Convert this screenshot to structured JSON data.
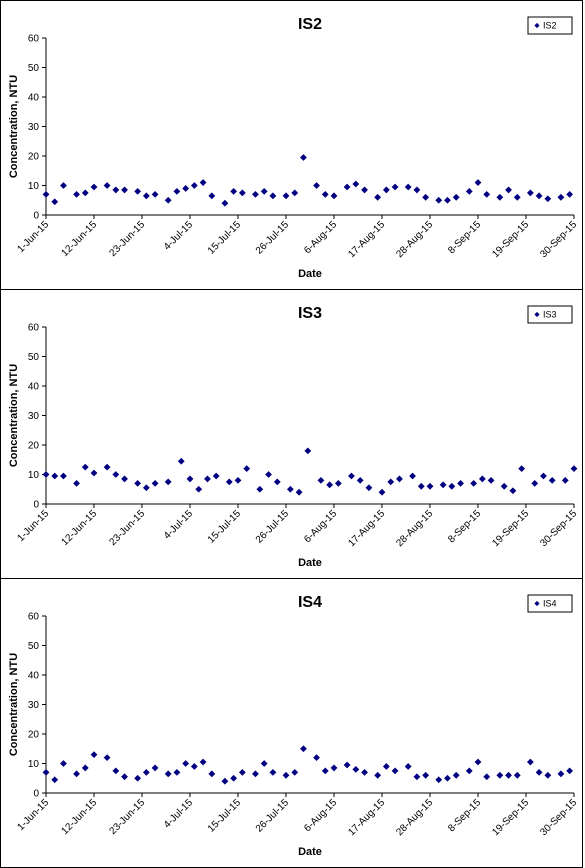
{
  "chart_data": [
    {
      "type": "scatter",
      "title": "IS2",
      "xlabel": "Date",
      "ylabel": "Concentration, NTU",
      "ylim": [
        0,
        60
      ],
      "yticks": [
        "0",
        "10",
        "20",
        "30",
        "40",
        "50",
        "60"
      ],
      "xlim": [
        "2015-06-01",
        "2015-09-30"
      ],
      "xticks": [
        "1-Jun-15",
        "12-Jun-15",
        "23-Jun-15",
        "4-Jul-15",
        "15-Jul-15",
        "26-Jul-15",
        "6-Aug-15",
        "17-Aug-15",
        "28-Aug-15",
        "8-Sep-15",
        "19-Sep-15",
        "30-Sep-15"
      ],
      "legend": "top-right",
      "grid": false,
      "marker_color": "#000080",
      "series": [
        {
          "name": "IS2",
          "points": [
            [
              "2015-06-01",
              7.0
            ],
            [
              "2015-06-03",
              4.5
            ],
            [
              "2015-06-05",
              10.0
            ],
            [
              "2015-06-08",
              7.0
            ],
            [
              "2015-06-10",
              7.5
            ],
            [
              "2015-06-12",
              9.5
            ],
            [
              "2015-06-15",
              10.0
            ],
            [
              "2015-06-17",
              8.5
            ],
            [
              "2015-06-19",
              8.5
            ],
            [
              "2015-06-22",
              8.0
            ],
            [
              "2015-06-24",
              6.5
            ],
            [
              "2015-06-26",
              7.0
            ],
            [
              "2015-06-29",
              5.0
            ],
            [
              "2015-07-01",
              8.0
            ],
            [
              "2015-07-03",
              9.0
            ],
            [
              "2015-07-05",
              10.0
            ],
            [
              "2015-07-07",
              11.0
            ],
            [
              "2015-07-09",
              6.5
            ],
            [
              "2015-07-12",
              4.0
            ],
            [
              "2015-07-14",
              8.0
            ],
            [
              "2015-07-16",
              7.5
            ],
            [
              "2015-07-19",
              7.0
            ],
            [
              "2015-07-21",
              8.0
            ],
            [
              "2015-07-23",
              6.5
            ],
            [
              "2015-07-26",
              6.5
            ],
            [
              "2015-07-28",
              7.5
            ],
            [
              "2015-07-30",
              19.5
            ],
            [
              "2015-08-02",
              10.0
            ],
            [
              "2015-08-04",
              7.0
            ],
            [
              "2015-08-06",
              6.5
            ],
            [
              "2015-08-09",
              9.5
            ],
            [
              "2015-08-11",
              10.5
            ],
            [
              "2015-08-13",
              8.5
            ],
            [
              "2015-08-16",
              6.0
            ],
            [
              "2015-08-18",
              8.5
            ],
            [
              "2015-08-20",
              9.5
            ],
            [
              "2015-08-23",
              9.5
            ],
            [
              "2015-08-25",
              8.5
            ],
            [
              "2015-08-27",
              6.0
            ],
            [
              "2015-08-30",
              5.0
            ],
            [
              "2015-09-01",
              5.0
            ],
            [
              "2015-09-03",
              6.0
            ],
            [
              "2015-09-06",
              8.0
            ],
            [
              "2015-09-08",
              11.0
            ],
            [
              "2015-09-10",
              7.0
            ],
            [
              "2015-09-13",
              6.0
            ],
            [
              "2015-09-15",
              8.5
            ],
            [
              "2015-09-17",
              6.0
            ],
            [
              "2015-09-20",
              7.5
            ],
            [
              "2015-09-22",
              6.5
            ],
            [
              "2015-09-24",
              5.5
            ],
            [
              "2015-09-27",
              6.0
            ],
            [
              "2015-09-29",
              7.0
            ]
          ]
        }
      ]
    },
    {
      "type": "scatter",
      "title": "IS3",
      "xlabel": "Date",
      "ylabel": "Concentration, NTU",
      "ylim": [
        0,
        60
      ],
      "yticks": [
        "0",
        "10",
        "20",
        "30",
        "40",
        "50",
        "60"
      ],
      "xlim": [
        "2015-06-01",
        "2015-09-30"
      ],
      "xticks": [
        "1-Jun-15",
        "12-Jun-15",
        "23-Jun-15",
        "4-Jul-15",
        "15-Jul-15",
        "26-Jul-15",
        "6-Aug-15",
        "17-Aug-15",
        "28-Aug-15",
        "8-Sep-15",
        "19-Sep-15",
        "30-Sep-15"
      ],
      "legend": "top-right",
      "grid": false,
      "marker_color": "#000080",
      "series": [
        {
          "name": "IS3",
          "points": [
            [
              "2015-06-01",
              10.0
            ],
            [
              "2015-06-03",
              9.5
            ],
            [
              "2015-06-05",
              9.5
            ],
            [
              "2015-06-08",
              7.0
            ],
            [
              "2015-06-10",
              12.5
            ],
            [
              "2015-06-12",
              10.5
            ],
            [
              "2015-06-15",
              12.5
            ],
            [
              "2015-06-17",
              10.0
            ],
            [
              "2015-06-19",
              8.5
            ],
            [
              "2015-06-22",
              7.0
            ],
            [
              "2015-06-24",
              5.5
            ],
            [
              "2015-06-26",
              7.0
            ],
            [
              "2015-06-29",
              7.5
            ],
            [
              "2015-07-02",
              14.5
            ],
            [
              "2015-07-04",
              8.5
            ],
            [
              "2015-07-06",
              5.0
            ],
            [
              "2015-07-08",
              8.5
            ],
            [
              "2015-07-10",
              9.5
            ],
            [
              "2015-07-13",
              7.5
            ],
            [
              "2015-07-15",
              8.0
            ],
            [
              "2015-07-17",
              12.0
            ],
            [
              "2015-07-20",
              5.0
            ],
            [
              "2015-07-22",
              10.0
            ],
            [
              "2015-07-24",
              7.5
            ],
            [
              "2015-07-27",
              5.0
            ],
            [
              "2015-07-29",
              4.0
            ],
            [
              "2015-07-31",
              18.0
            ],
            [
              "2015-08-03",
              8.0
            ],
            [
              "2015-08-05",
              6.5
            ],
            [
              "2015-08-07",
              7.0
            ],
            [
              "2015-08-10",
              9.5
            ],
            [
              "2015-08-12",
              8.0
            ],
            [
              "2015-08-14",
              5.5
            ],
            [
              "2015-08-17",
              4.0
            ],
            [
              "2015-08-19",
              7.5
            ],
            [
              "2015-08-21",
              8.5
            ],
            [
              "2015-08-24",
              9.5
            ],
            [
              "2015-08-26",
              6.0
            ],
            [
              "2015-08-28",
              6.0
            ],
            [
              "2015-08-31",
              6.5
            ],
            [
              "2015-09-02",
              6.0
            ],
            [
              "2015-09-04",
              7.0
            ],
            [
              "2015-09-07",
              7.0
            ],
            [
              "2015-09-09",
              8.5
            ],
            [
              "2015-09-11",
              8.0
            ],
            [
              "2015-09-14",
              6.0
            ],
            [
              "2015-09-16",
              4.5
            ],
            [
              "2015-09-18",
              12.0
            ],
            [
              "2015-09-21",
              7.0
            ],
            [
              "2015-09-23",
              9.5
            ],
            [
              "2015-09-25",
              8.0
            ],
            [
              "2015-09-28",
              8.0
            ],
            [
              "2015-09-30",
              12.0
            ]
          ]
        }
      ]
    },
    {
      "type": "scatter",
      "title": "IS4",
      "xlabel": "Date",
      "ylabel": "Concentration, NTU",
      "ylim": [
        0,
        60
      ],
      "yticks": [
        "0",
        "10",
        "20",
        "30",
        "40",
        "50",
        "60"
      ],
      "xlim": [
        "2015-06-01",
        "2015-09-30"
      ],
      "xticks": [
        "1-Jun-15",
        "12-Jun-15",
        "23-Jun-15",
        "4-Jul-15",
        "15-Jul-15",
        "26-Jul-15",
        "6-Aug-15",
        "17-Aug-15",
        "28-Aug-15",
        "8-Sep-15",
        "19-Sep-15",
        "30-Sep-15"
      ],
      "legend": "top-right",
      "grid": false,
      "marker_color": "#000080",
      "series": [
        {
          "name": "IS4",
          "points": [
            [
              "2015-06-01",
              7.0
            ],
            [
              "2015-06-03",
              4.5
            ],
            [
              "2015-06-05",
              10.0
            ],
            [
              "2015-06-08",
              6.5
            ],
            [
              "2015-06-10",
              8.5
            ],
            [
              "2015-06-12",
              13.0
            ],
            [
              "2015-06-15",
              12.0
            ],
            [
              "2015-06-17",
              7.5
            ],
            [
              "2015-06-19",
              5.5
            ],
            [
              "2015-06-22",
              5.0
            ],
            [
              "2015-06-24",
              7.0
            ],
            [
              "2015-06-26",
              8.5
            ],
            [
              "2015-06-29",
              6.5
            ],
            [
              "2015-07-01",
              7.0
            ],
            [
              "2015-07-03",
              10.0
            ],
            [
              "2015-07-05",
              9.0
            ],
            [
              "2015-07-07",
              10.5
            ],
            [
              "2015-07-09",
              6.5
            ],
            [
              "2015-07-12",
              4.0
            ],
            [
              "2015-07-14",
              5.0
            ],
            [
              "2015-07-16",
              7.0
            ],
            [
              "2015-07-19",
              6.5
            ],
            [
              "2015-07-21",
              10.0
            ],
            [
              "2015-07-23",
              7.0
            ],
            [
              "2015-07-26",
              6.0
            ],
            [
              "2015-07-28",
              7.0
            ],
            [
              "2015-07-30",
              15.0
            ],
            [
              "2015-08-02",
              12.0
            ],
            [
              "2015-08-04",
              7.5
            ],
            [
              "2015-08-06",
              8.5
            ],
            [
              "2015-08-09",
              9.5
            ],
            [
              "2015-08-11",
              8.0
            ],
            [
              "2015-08-13",
              7.0
            ],
            [
              "2015-08-16",
              6.0
            ],
            [
              "2015-08-18",
              9.0
            ],
            [
              "2015-08-20",
              7.5
            ],
            [
              "2015-08-23",
              9.0
            ],
            [
              "2015-08-25",
              5.5
            ],
            [
              "2015-08-27",
              6.0
            ],
            [
              "2015-08-30",
              4.5
            ],
            [
              "2015-09-01",
              5.0
            ],
            [
              "2015-09-03",
              6.0
            ],
            [
              "2015-09-06",
              7.5
            ],
            [
              "2015-09-08",
              10.5
            ],
            [
              "2015-09-10",
              5.5
            ],
            [
              "2015-09-13",
              6.0
            ],
            [
              "2015-09-15",
              6.0
            ],
            [
              "2015-09-17",
              6.0
            ],
            [
              "2015-09-20",
              10.5
            ],
            [
              "2015-09-22",
              7.0
            ],
            [
              "2015-09-24",
              6.0
            ],
            [
              "2015-09-27",
              6.5
            ],
            [
              "2015-09-29",
              7.5
            ]
          ]
        }
      ]
    }
  ]
}
